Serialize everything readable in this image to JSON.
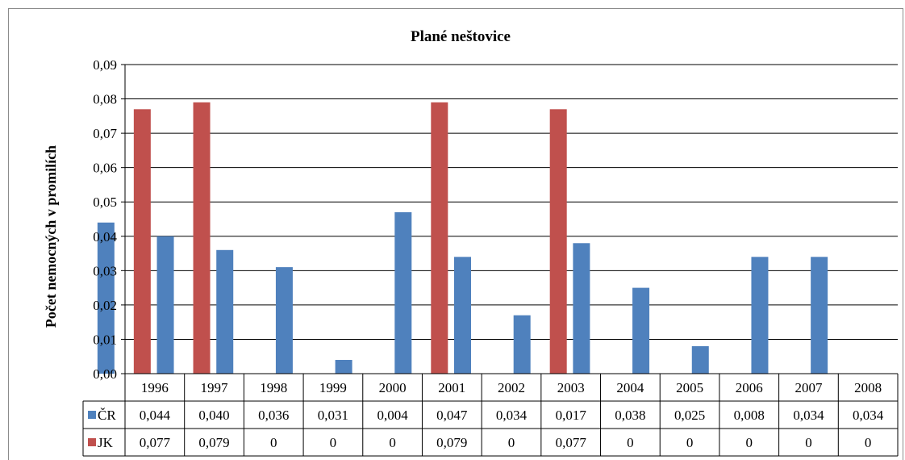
{
  "chart_data": {
    "type": "bar",
    "title": "Plané neštovice",
    "ylabel": "Počet nemocných  v promilích",
    "xlabel": "",
    "categories": [
      "1996",
      "1997",
      "1998",
      "1999",
      "2000",
      "2001",
      "2002",
      "2003",
      "2004",
      "2005",
      "2006",
      "2007",
      "2008"
    ],
    "ylim": [
      0,
      0.09
    ],
    "yticks": [
      "0,00",
      "0,01",
      "0,02",
      "0,03",
      "0,04",
      "0,05",
      "0,06",
      "0,07",
      "0,08",
      "0,09"
    ],
    "grid": true,
    "legend": "data-table",
    "series": [
      {
        "name": "ČR",
        "color": "#4f81bd",
        "values": [
          0.044,
          0.04,
          0.036,
          0.031,
          0.004,
          0.047,
          0.034,
          0.017,
          0.038,
          0.025,
          0.008,
          0.034,
          0.034
        ],
        "labels": [
          "0,044",
          "0,040",
          "0,036",
          "0,031",
          "0,004",
          "0,047",
          "0,034",
          "0,017",
          "0,038",
          "0,025",
          "0,008",
          "0,034",
          "0,034"
        ]
      },
      {
        "name": "JK",
        "color": "#c0504d",
        "values": [
          0.077,
          0.079,
          0,
          0,
          0,
          0.079,
          0,
          0.077,
          0,
          0,
          0,
          0,
          0
        ],
        "labels": [
          "0,077",
          "0,079",
          "0",
          "0",
          "0",
          "0,079",
          "0",
          "0,077",
          "0",
          "0",
          "0",
          "0",
          "0"
        ]
      }
    ]
  }
}
